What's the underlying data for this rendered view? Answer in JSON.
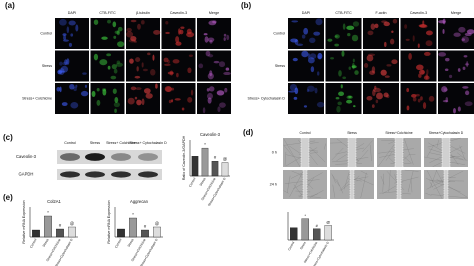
{
  "panels": {
    "a": {
      "label": "(a)",
      "columns": [
        "DAPI",
        "CTB-FITC",
        "β-tubulin",
        "Caveolin-3",
        "Merge"
      ],
      "rows": [
        "Control",
        "Stress",
        "Stress+ Colchicine"
      ]
    },
    "b": {
      "label": "(b)",
      "columns": [
        "DAPI",
        "CTB-FITC",
        "F-actin",
        "Caveolin-3",
        "Merge"
      ],
      "rows": [
        "Control",
        "Stress",
        "Stress+ Cytochalasin D"
      ]
    },
    "c": {
      "label": "(c)",
      "lanes": [
        "Control",
        "Stress",
        "Stress+ Colchicine",
        "Stress+ Cytochalasin D"
      ],
      "blots": [
        "Caveolin-3",
        "GAPDH"
      ],
      "chart": {
        "type": "bar",
        "title": "Caveolin-3",
        "ylabel": "Ratio of Caveolin-3/GAPDH",
        "categories": [
          "Control",
          "Stress",
          "Stress+Colchicine",
          "Stress+Cytochalasin D"
        ],
        "values": [
          0.44,
          0.62,
          0.33,
          0.3
        ],
        "colors": [
          "#333333",
          "#999999",
          "#555555",
          "#dddddd"
        ],
        "annotations": [
          null,
          "*",
          "#",
          "@"
        ],
        "ylim": [
          0,
          0.8
        ]
      }
    },
    "d": {
      "label": "(d)",
      "columns": [
        "Control",
        "Stress",
        "Stress+Colchicine",
        "Stress+Cytochalasin D"
      ],
      "rows": [
        "0 h",
        "24 h"
      ],
      "chart": {
        "type": "bar",
        "categories": [
          "Control",
          "Stress",
          "Stress+Colchicine",
          "Stress+Cytochalasin D"
        ],
        "values": [
          22,
          38,
          20,
          26
        ],
        "colors": [
          "#333333",
          "#999999",
          "#555555",
          "#dddddd"
        ],
        "annotations": [
          null,
          "*",
          "#",
          "@"
        ],
        "ylim": [
          0,
          50
        ]
      }
    },
    "e": {
      "label": "(e)",
      "charts": [
        {
          "type": "bar",
          "title": "Col2A1",
          "ylabel": "Relative mRNA Expression",
          "categories": [
            "Control",
            "Stress",
            "Stress+Colchicine",
            "Stress+Cytochalasin D"
          ],
          "values": [
            0.35,
            1.05,
            0.4,
            0.5
          ],
          "colors": [
            "#333333",
            "#999999",
            "#555555",
            "#dddddd"
          ],
          "annotations": [
            null,
            "*",
            "#",
            "@"
          ],
          "ylim": [
            0,
            1.5
          ]
        },
        {
          "type": "bar",
          "title": "Aggrecan",
          "ylabel": "Relative mRNA Expression",
          "categories": [
            "Control",
            "Stress",
            "Stress+Colchicine",
            "Stress+Cytochalasin D"
          ],
          "values": [
            0.4,
            0.95,
            0.35,
            0.5
          ],
          "colors": [
            "#333333",
            "#999999",
            "#555555",
            "#dddddd"
          ],
          "annotations": [
            null,
            "*",
            "#",
            "@"
          ],
          "ylim": [
            0,
            1.5
          ]
        }
      ]
    }
  }
}
